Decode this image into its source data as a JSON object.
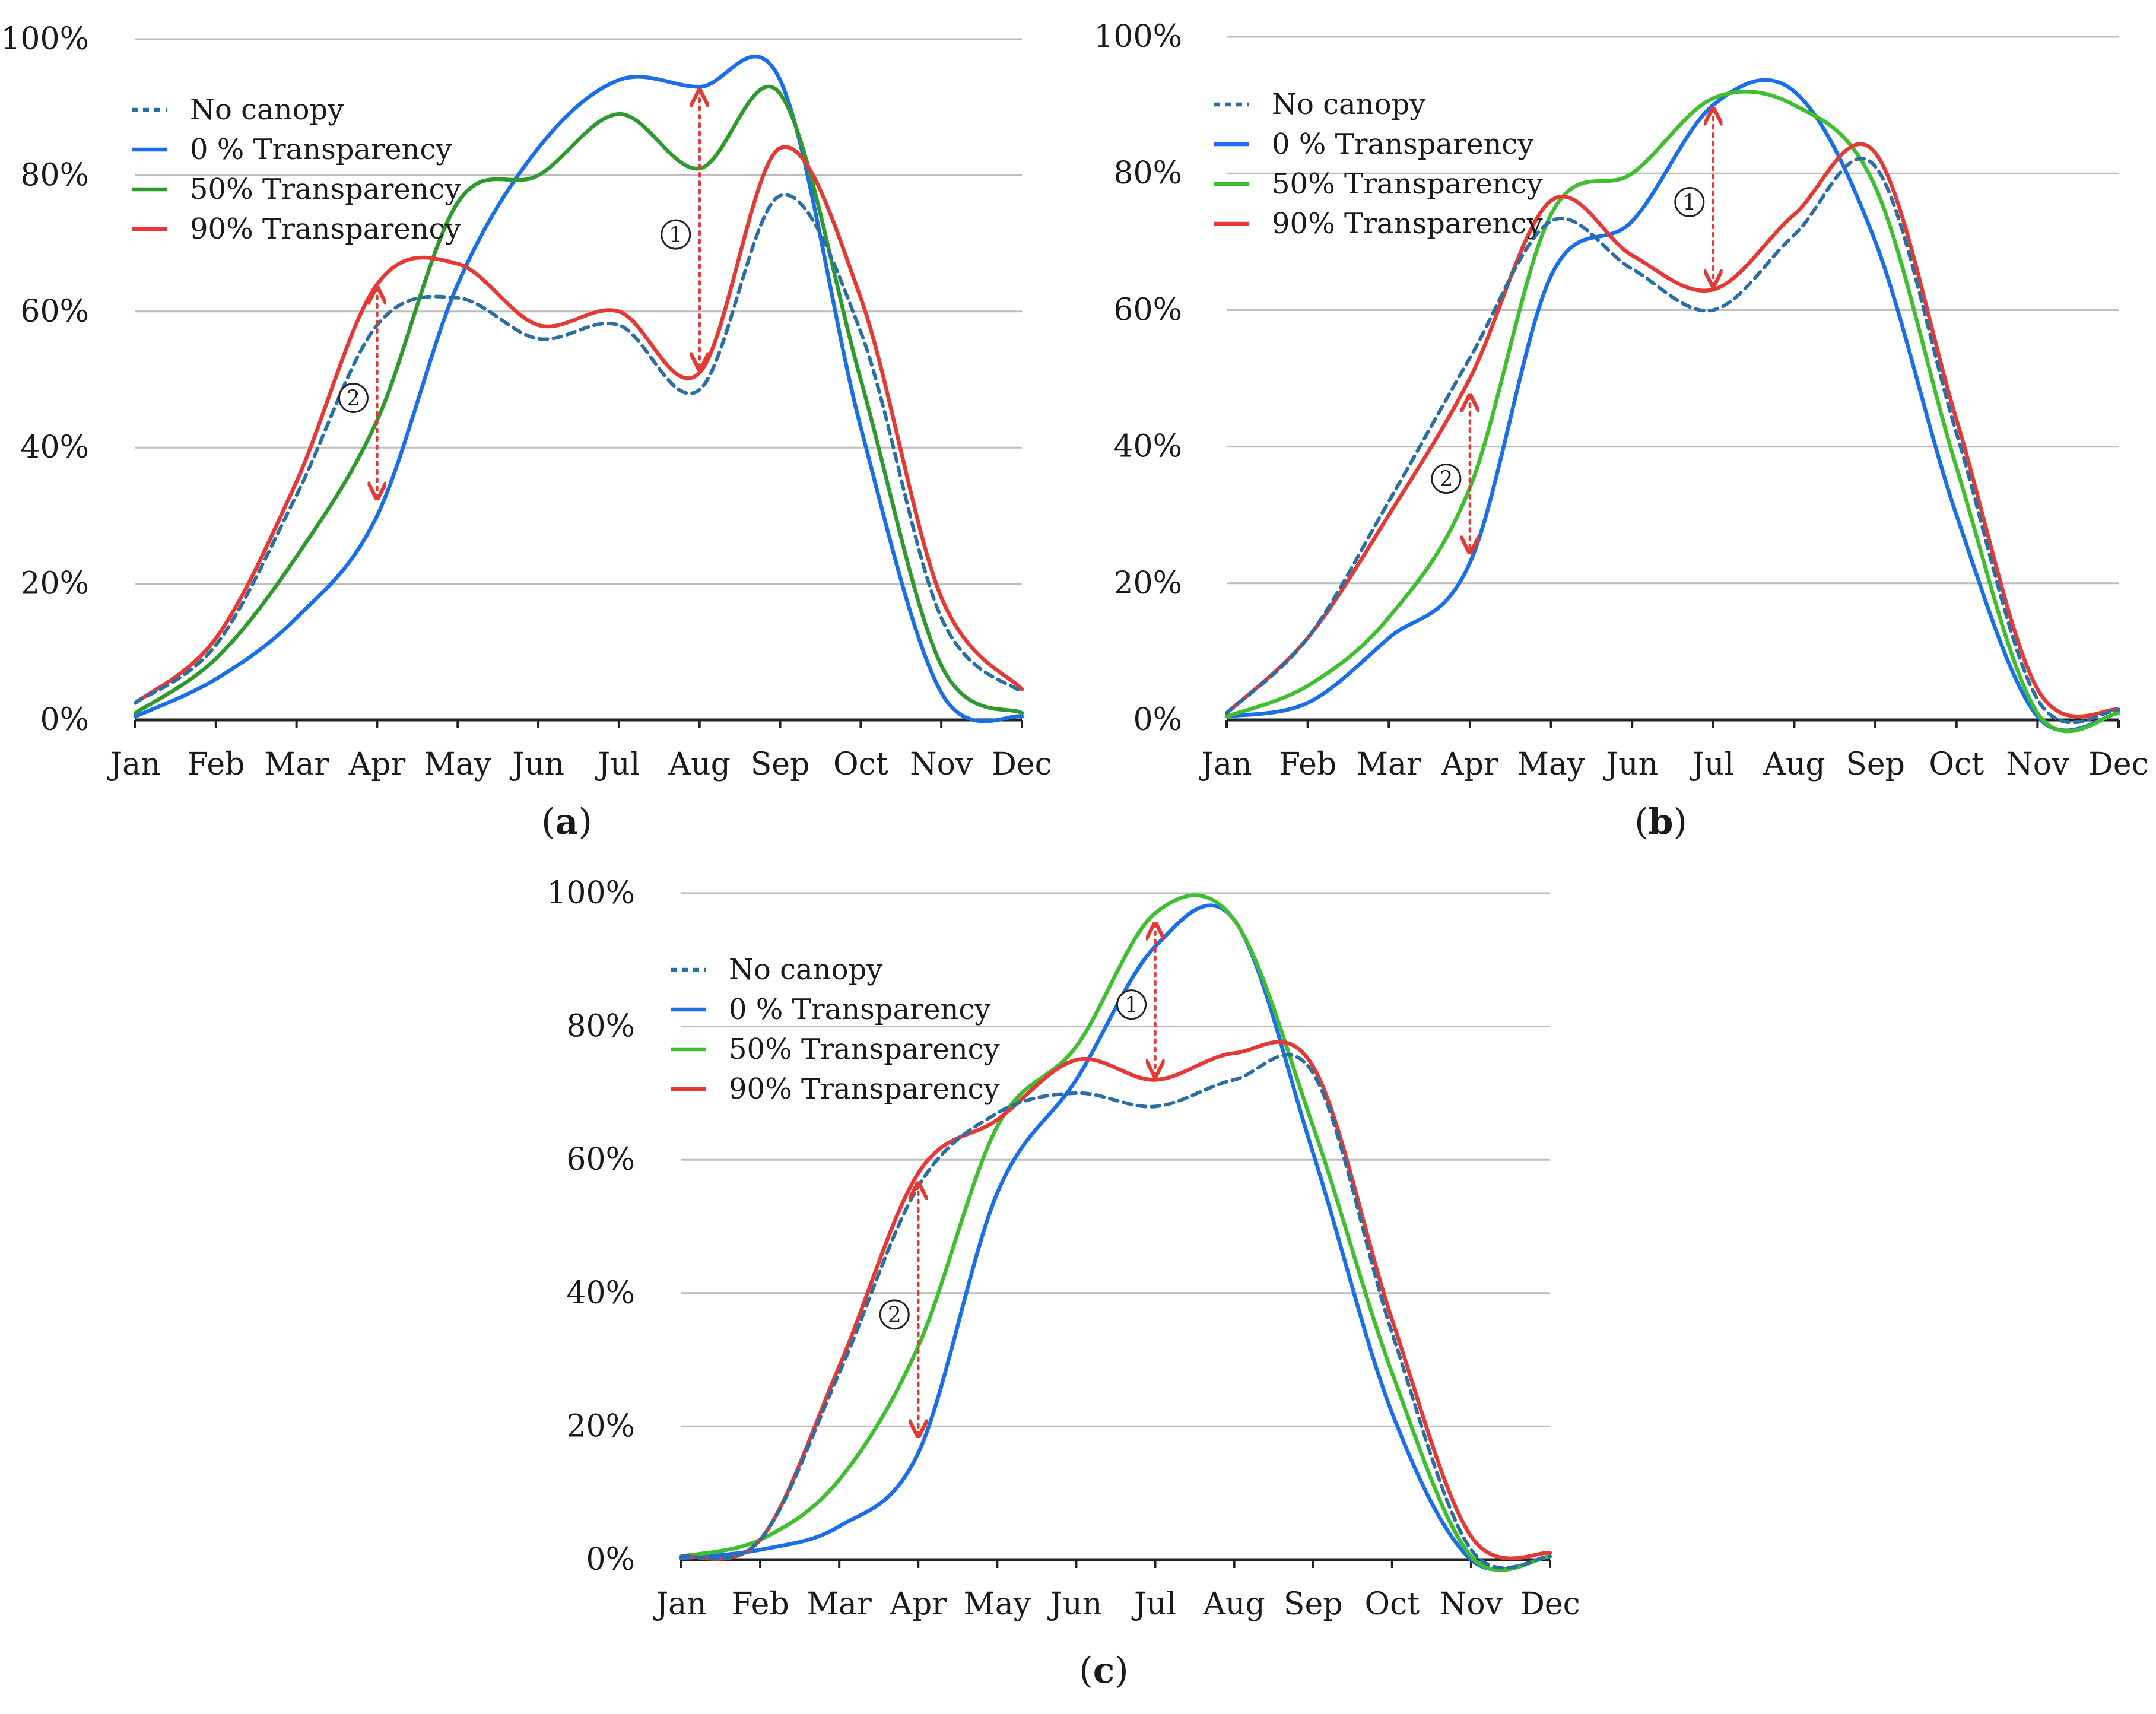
{
  "colors": {
    "no_canopy": "#2a6fa3",
    "t0": "#1a6fe8",
    "t50_a": "#2e9a2e",
    "t50": "#3fbf2f",
    "t90": "#e53935",
    "grid": "#bdbdbd",
    "axis": "#222222",
    "annotation": "#e53935"
  },
  "chart_data": [
    {
      "id": "a",
      "type": "line",
      "caption_letter": "a",
      "x": [
        "Jan",
        "Feb",
        "Mar",
        "Apr",
        "May",
        "Jun",
        "Jul",
        "Aug",
        "Sep",
        "Oct",
        "Nov",
        "Dec"
      ],
      "ylim": [
        0,
        100
      ],
      "ytick_labels": [
        "0%",
        "20%",
        "40%",
        "60%",
        "80%",
        "100%"
      ],
      "series": [
        {
          "name": "No canopy",
          "color_key": "no_canopy",
          "dashed": true,
          "values": [
            2.5,
            11,
            33,
            58,
            62,
            56,
            58,
            48.5,
            77,
            57,
            15,
            4
          ]
        },
        {
          "name": "0 % Transparency",
          "color_key": "t0",
          "dashed": false,
          "values": [
            0.5,
            6,
            15,
            30,
            64,
            84,
            94,
            93,
            94,
            43,
            4,
            0.5
          ]
        },
        {
          "name": "50% Transparency",
          "color_key": "t50_a",
          "dashed": false,
          "values": [
            1,
            9,
            24,
            44,
            76,
            80,
            89,
            81,
            92,
            50,
            8,
            1
          ]
        },
        {
          "name": "90% Transparency",
          "color_key": "t90",
          "dashed": false,
          "values": [
            2.5,
            12,
            35,
            64,
            67,
            58,
            60,
            51,
            84,
            62,
            18,
            4.5
          ]
        }
      ],
      "annotations": [
        {
          "label": "①",
          "month_index": 7,
          "from": 93,
          "to": 51
        },
        {
          "label": "②",
          "month_index": 3,
          "from": 64,
          "to": 32
        }
      ]
    },
    {
      "id": "b",
      "type": "line",
      "caption_letter": "b",
      "x": [
        "Jan",
        "Feb",
        "Mar",
        "Apr",
        "May",
        "Jun",
        "Jul",
        "Aug",
        "Sep",
        "Oct",
        "Nov",
        "Dec"
      ],
      "ylim": [
        0,
        100
      ],
      "ytick_labels": [
        "0%",
        "20%",
        "40%",
        "60%",
        "80%",
        "100%"
      ],
      "series": [
        {
          "name": "No canopy",
          "color_key": "no_canopy",
          "dashed": true,
          "values": [
            1,
            12,
            32,
            53,
            73,
            66,
            60,
            71,
            81,
            42,
            3,
            1.5
          ]
        },
        {
          "name": "0 % Transparency",
          "color_key": "t0",
          "dashed": false,
          "values": [
            0.5,
            2.5,
            12,
            23,
            65,
            73,
            90,
            92,
            70,
            30,
            0.5,
            1
          ]
        },
        {
          "name": "50% Transparency",
          "color_key": "t50",
          "dashed": false,
          "values": [
            0.5,
            5,
            15,
            34,
            74,
            80,
            91,
            90,
            78,
            37,
            1,
            1
          ]
        },
        {
          "name": "90% Transparency",
          "color_key": "t90",
          "dashed": false,
          "values": [
            1,
            12,
            30,
            50,
            76,
            68,
            63,
            74,
            83,
            44,
            4.5,
            1.5
          ]
        }
      ],
      "annotations": [
        {
          "label": "①",
          "month_index": 6,
          "from": 90,
          "to": 63
        },
        {
          "label": "②",
          "month_index": 3,
          "from": 48,
          "to": 24
        }
      ]
    },
    {
      "id": "c",
      "type": "line",
      "caption_letter": "c",
      "x": [
        "Jan",
        "Feb",
        "Mar",
        "Apr",
        "May",
        "Jun",
        "Jul",
        "Aug",
        "Sep",
        "Oct",
        "Nov",
        "Dec"
      ],
      "ylim": [
        0,
        100
      ],
      "ytick_labels": [
        "0%",
        "20%",
        "40%",
        "60%",
        "80%",
        "100%"
      ],
      "series": [
        {
          "name": "No canopy",
          "color_key": "no_canopy",
          "dashed": true,
          "values": [
            0.5,
            3,
            28,
            56,
            67,
            70,
            68,
            72,
            73,
            34,
            1.5,
            0.5
          ]
        },
        {
          "name": "0 % Transparency",
          "color_key": "t0",
          "dashed": false,
          "values": [
            0.2,
            1.5,
            5,
            16,
            55,
            72,
            92,
            96,
            61,
            22,
            0,
            0.5
          ]
        },
        {
          "name": "50% Transparency",
          "color_key": "t50",
          "dashed": false,
          "values": [
            0.5,
            3,
            12,
            32,
            65,
            77,
            97,
            96,
            65,
            28,
            0.5,
            0.5
          ]
        },
        {
          "name": "90% Transparency",
          "color_key": "t90",
          "dashed": false,
          "values": [
            0.5,
            3,
            29,
            58,
            66,
            75,
            72,
            76,
            74,
            36,
            3.5,
            1
          ]
        }
      ],
      "annotations": [
        {
          "label": "①",
          "month_index": 6,
          "from": 96,
          "to": 72
        },
        {
          "label": "②",
          "month_index": 3,
          "from": 57,
          "to": 18
        }
      ]
    }
  ]
}
